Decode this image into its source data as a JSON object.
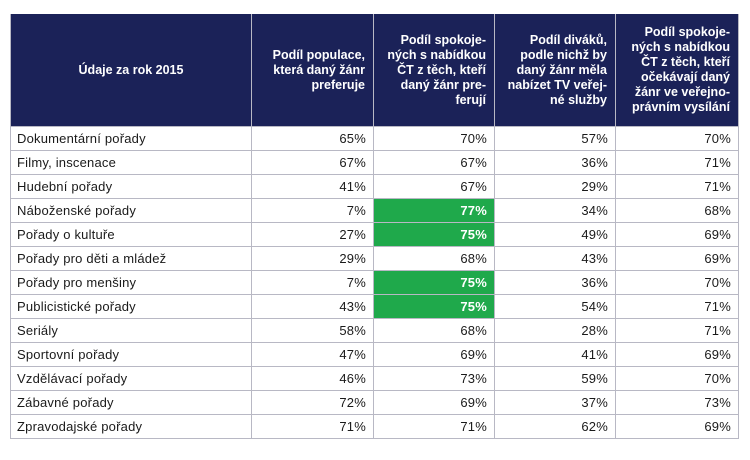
{
  "table": {
    "headers": [
      [
        "Údaje za rok 2015"
      ],
      [
        "Podíl populace,",
        "která daný žánr",
        "preferuje"
      ],
      [
        "Podíl spokoje-",
        "ných s nabídkou",
        "ČT z těch, kteří",
        "daný žánr pre-",
        "ferují"
      ],
      [
        "Podíl diváků,",
        "podle nichž by",
        "daný žánr měla",
        "nabízet TV veřej-",
        "né služby"
      ],
      [
        "Podíl spokoje-",
        "ných s nabídkou",
        "ČT z těch, kteří",
        "očekávají daný",
        "žánr ve veřejno-",
        "právním vysílání"
      ]
    ],
    "highlight_color": "#1fa94b",
    "rows": [
      {
        "label": "Dokumentární pořady",
        "values": [
          "65%",
          "70%",
          "57%",
          "70%"
        ],
        "highlight": [
          false,
          false,
          false,
          false
        ]
      },
      {
        "label": "Filmy, inscenace",
        "values": [
          "67%",
          "67%",
          "36%",
          "71%"
        ],
        "highlight": [
          false,
          false,
          false,
          false
        ]
      },
      {
        "label": "Hudební pořady",
        "values": [
          "41%",
          "67%",
          "29%",
          "71%"
        ],
        "highlight": [
          false,
          false,
          false,
          false
        ]
      },
      {
        "label": "Náboženské pořady",
        "values": [
          "7%",
          "77%",
          "34%",
          "68%"
        ],
        "highlight": [
          false,
          true,
          false,
          false
        ]
      },
      {
        "label": "Pořady o kultuře",
        "values": [
          "27%",
          "75%",
          "49%",
          "69%"
        ],
        "highlight": [
          false,
          true,
          false,
          false
        ]
      },
      {
        "label": "Pořady pro děti a mládež",
        "values": [
          "29%",
          "68%",
          "43%",
          "69%"
        ],
        "highlight": [
          false,
          false,
          false,
          false
        ]
      },
      {
        "label": "Pořady pro menšiny",
        "values": [
          "7%",
          "75%",
          "36%",
          "70%"
        ],
        "highlight": [
          false,
          true,
          false,
          false
        ]
      },
      {
        "label": "Publicistické pořady",
        "values": [
          "43%",
          "75%",
          "54%",
          "71%"
        ],
        "highlight": [
          false,
          true,
          false,
          false
        ]
      },
      {
        "label": "Seriály",
        "values": [
          "58%",
          "68%",
          "28%",
          "71%"
        ],
        "highlight": [
          false,
          false,
          false,
          false
        ]
      },
      {
        "label": "Sportovní pořady",
        "values": [
          "47%",
          "69%",
          "41%",
          "69%"
        ],
        "highlight": [
          false,
          false,
          false,
          false
        ]
      },
      {
        "label": "Vzdělávací pořady",
        "values": [
          "46%",
          "73%",
          "59%",
          "70%"
        ],
        "highlight": [
          false,
          false,
          false,
          false
        ]
      },
      {
        "label": "Zábavné pořady",
        "values": [
          "72%",
          "69%",
          "37%",
          "73%"
        ],
        "highlight": [
          false,
          false,
          false,
          false
        ]
      },
      {
        "label": "Zpravodajské pořady",
        "values": [
          "71%",
          "71%",
          "62%",
          "69%"
        ],
        "highlight": [
          false,
          false,
          false,
          false
        ]
      }
    ]
  }
}
